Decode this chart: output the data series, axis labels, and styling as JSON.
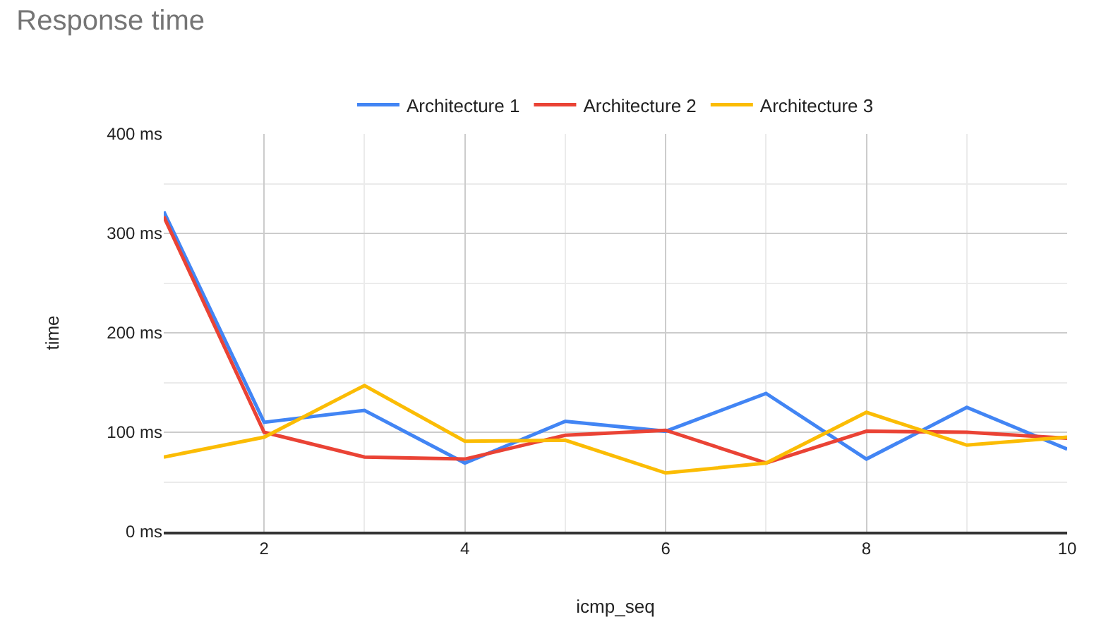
{
  "chart_data": {
    "type": "line",
    "title": "Response time",
    "xlabel": "icmp_seq",
    "ylabel": "time",
    "x": [
      1,
      2,
      3,
      4,
      5,
      6,
      7,
      8,
      9,
      10
    ],
    "series": [
      {
        "name": "Architecture 1",
        "color": "#4285f4",
        "values": [
          322,
          110,
          122,
          69,
          111,
          101,
          139,
          73,
          125,
          83
        ]
      },
      {
        "name": "Architecture 2",
        "color": "#ea4335",
        "values": [
          317,
          100,
          75,
          73,
          97,
          102,
          69,
          101,
          100,
          94
        ]
      },
      {
        "name": "Architecture 3",
        "color": "#fbbc04",
        "values": [
          75,
          95,
          147,
          91,
          92,
          59,
          69,
          120,
          87,
          95
        ]
      }
    ],
    "xlim": [
      1,
      10
    ],
    "xticks": [
      2,
      4,
      6,
      8,
      10
    ],
    "ylim": [
      0,
      400
    ],
    "yticks": [
      {
        "value": 0,
        "label": "0 ms"
      },
      {
        "value": 100,
        "label": "100 ms"
      },
      {
        "value": 200,
        "label": "200 ms"
      },
      {
        "value": 300,
        "label": "300 ms"
      },
      {
        "value": 400,
        "label": "400 ms"
      }
    ],
    "grid": true,
    "legend": "top",
    "marker": "none",
    "line_style": "solid"
  }
}
